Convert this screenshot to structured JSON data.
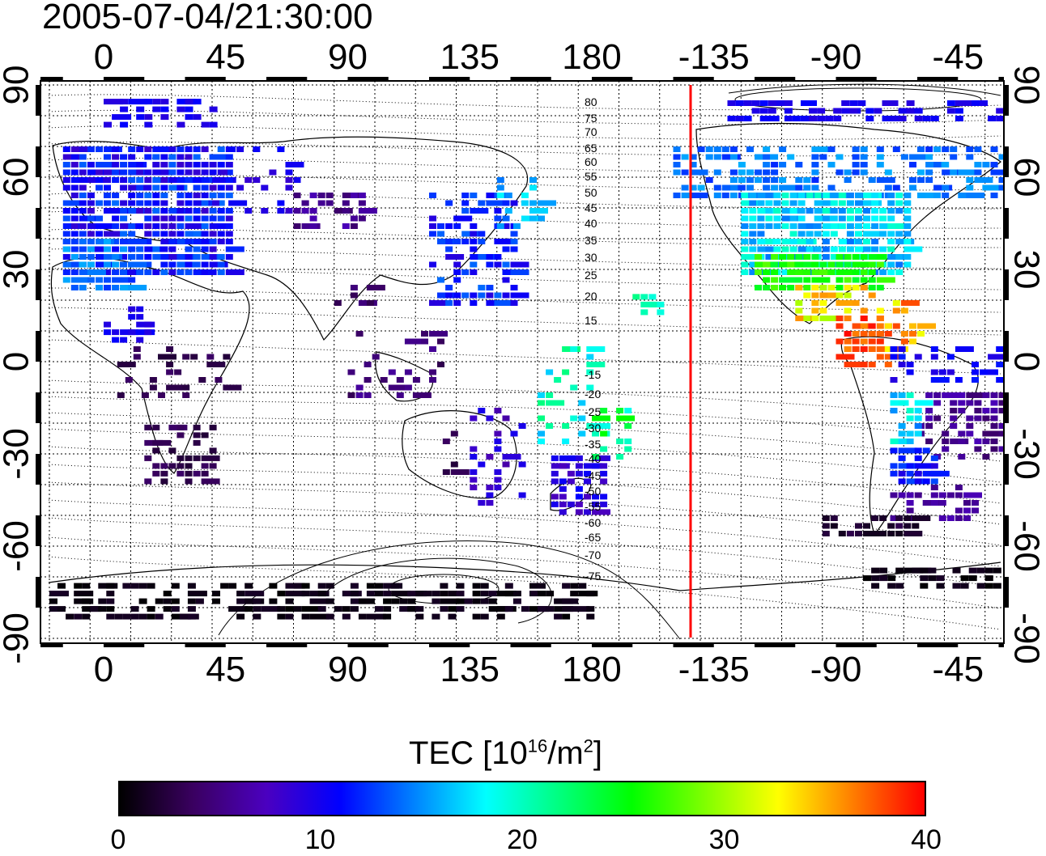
{
  "title": "2005-07-04/21:30:00",
  "map": {
    "top_lon_labels": [
      "0",
      "45",
      "90",
      "135",
      "180",
      "-135",
      "-90",
      "-45"
    ],
    "bottom_lon_labels": [
      "0",
      "45",
      "90",
      "135",
      "180",
      "-135",
      "-90",
      "-45"
    ],
    "left_lat_labels": [
      "90",
      "60",
      "30",
      "0",
      "-30",
      "-60",
      "-90"
    ],
    "right_lat_labels": [
      "90",
      "60",
      "30",
      "0",
      "-30",
      "-60",
      "-90"
    ],
    "contour_labels": [
      "80",
      "75",
      "70",
      "65",
      "60",
      "55",
      "50",
      "45",
      "40",
      "35",
      "30",
      "25",
      "20",
      "15",
      "-15",
      "-20",
      "-25",
      "-30",
      "-35",
      "-40",
      "-45",
      "-50",
      "-55",
      "-60",
      "-65",
      "-70",
      "-75"
    ],
    "terminator_color": "#ff0000"
  },
  "colorbar": {
    "title_prefix": "TEC  [10",
    "title_exp1": "16",
    "title_mid": "/m",
    "title_exp2": "2",
    "title_suffix": "]",
    "ticks": [
      "0",
      "10",
      "20",
      "30",
      "40"
    ],
    "range": [
      0,
      40
    ],
    "colormap": [
      "#000000",
      "#3a0060",
      "#4b00c0",
      "#0000ff",
      "#0080ff",
      "#00ffff",
      "#00ff80",
      "#00ff00",
      "#80ff00",
      "#ffff00",
      "#ff8000",
      "#ff0000"
    ]
  }
}
